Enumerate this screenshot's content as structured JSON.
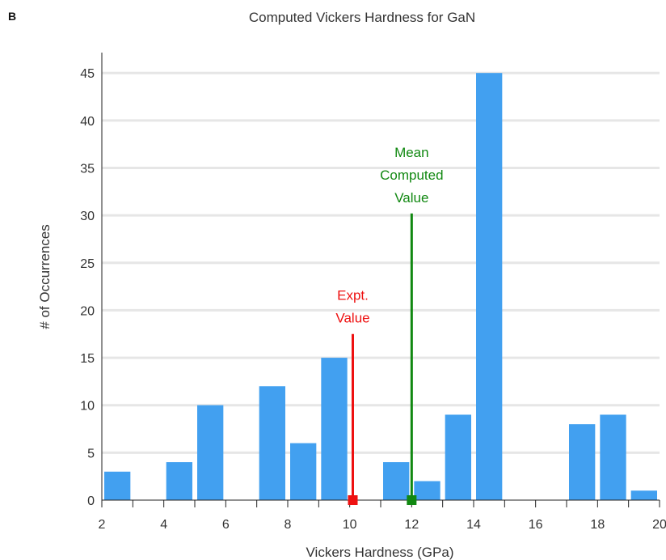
{
  "panel_letter": "B",
  "chart_data": {
    "type": "bar",
    "title": "Computed Vickers Hardness for GaN",
    "xlabel": "Vickers Hardness (GPa)",
    "ylabel": "# of Occurrences",
    "xlim": [
      2,
      20
    ],
    "ylim": [
      0,
      48
    ],
    "xticks": [
      2,
      4,
      6,
      8,
      10,
      12,
      14,
      16,
      18,
      20
    ],
    "yticks": [
      0,
      5,
      10,
      15,
      20,
      25,
      30,
      35,
      40,
      45
    ],
    "bin_width": 1,
    "bins": [
      {
        "start": 2,
        "end": 3,
        "value": 3
      },
      {
        "start": 3,
        "end": 4,
        "value": 0
      },
      {
        "start": 4,
        "end": 5,
        "value": 4
      },
      {
        "start": 5,
        "end": 6,
        "value": 10
      },
      {
        "start": 6,
        "end": 7,
        "value": 0
      },
      {
        "start": 7,
        "end": 8,
        "value": 12
      },
      {
        "start": 8,
        "end": 9,
        "value": 6
      },
      {
        "start": 9,
        "end": 10,
        "value": 15
      },
      {
        "start": 10,
        "end": 11,
        "value": 0
      },
      {
        "start": 11,
        "end": 12,
        "value": 4
      },
      {
        "start": 12,
        "end": 13,
        "value": 2
      },
      {
        "start": 13,
        "end": 14,
        "value": 9
      },
      {
        "start": 14,
        "end": 15,
        "value": 45
      },
      {
        "start": 15,
        "end": 16,
        "value": 0
      },
      {
        "start": 16,
        "end": 17,
        "value": 0
      },
      {
        "start": 17,
        "end": 18,
        "value": 8
      },
      {
        "start": 18,
        "end": 19,
        "value": 9
      },
      {
        "start": 19,
        "end": 20,
        "value": 1
      }
    ],
    "bar_color": "#42a0f0",
    "grid": "horizontal",
    "markers": [
      {
        "name": "expt",
        "label_lines": [
          "Expt.",
          "Value"
        ],
        "x": 10.1,
        "y_top": 17.5,
        "color": "#ee1111"
      },
      {
        "name": "mean",
        "label_lines": [
          "Mean",
          "Computed",
          "Value"
        ],
        "x": 12.0,
        "y_top": 30.2,
        "color": "#118811"
      }
    ]
  }
}
